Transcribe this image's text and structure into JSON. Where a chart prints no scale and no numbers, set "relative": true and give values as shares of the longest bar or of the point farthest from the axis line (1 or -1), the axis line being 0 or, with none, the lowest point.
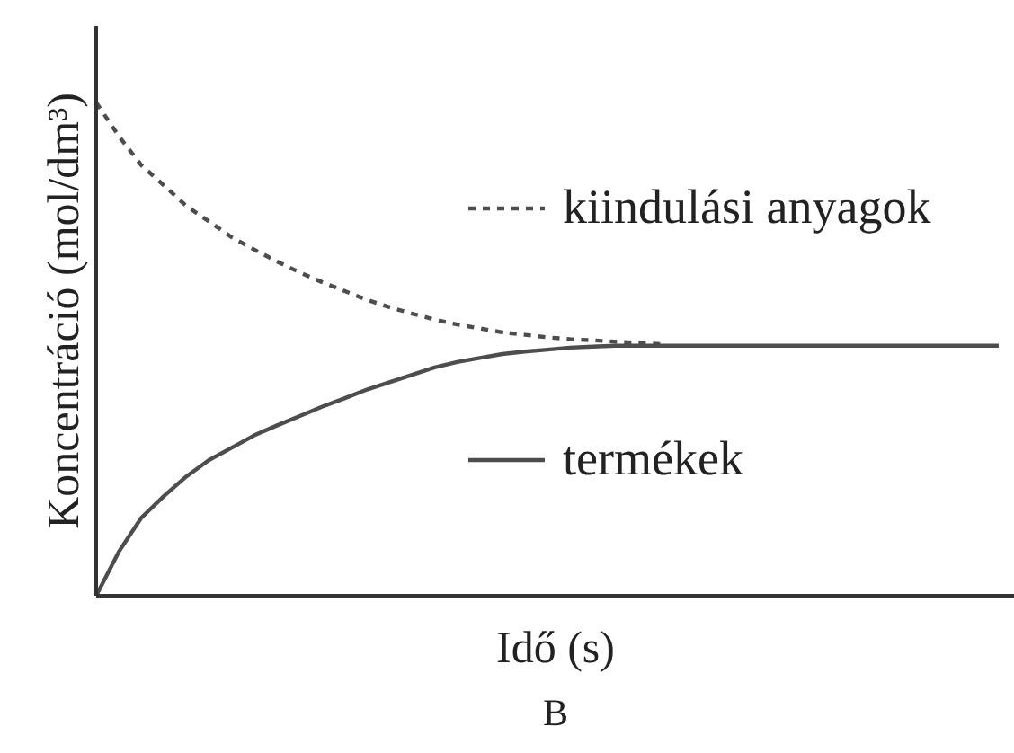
{
  "chart_data": {
    "type": "line",
    "relative": true,
    "xlabel": "Idő (s)",
    "ylabel": "Koncentráció (mol/dm³)",
    "annotations": [
      "B"
    ],
    "legend": "right",
    "categories": [
      null,
      null,
      null,
      null,
      null,
      null,
      null,
      null,
      null,
      null,
      null,
      null,
      null,
      null,
      null,
      null,
      null,
      null,
      null,
      null,
      null,
      null,
      null,
      null,
      null,
      null,
      null,
      null,
      null,
      null,
      null,
      null,
      null,
      null,
      null,
      null,
      null,
      null,
      null,
      null,
      null
    ],
    "series": [
      {
        "name": "kiindulási anyagok",
        "color": "#4d4d4d",
        "line_style": "dashed",
        "values": [
          1,
          0.932,
          0.873,
          0.832,
          0.79,
          0.759,
          0.727,
          0.702,
          0.678,
          0.656,
          0.636,
          0.618,
          0.6,
          0.585,
          0.572,
          0.56,
          0.55,
          0.542,
          0.534,
          0.529,
          0.524,
          0.52,
          0.518,
          0.515,
          0.513,
          0.51,
          null,
          null,
          null,
          null,
          null,
          null,
          null,
          null,
          null,
          null,
          null,
          null,
          null,
          null,
          null
        ]
      },
      {
        "name": "termékek",
        "color": "#4d4d4d",
        "line_style": "solid",
        "values": [
          0,
          0.089,
          0.158,
          0.202,
          0.242,
          0.275,
          0.3,
          0.325,
          0.345,
          0.364,
          0.383,
          0.4,
          0.418,
          0.433,
          0.448,
          0.463,
          0.474,
          0.482,
          0.49,
          0.495,
          0.499,
          0.503,
          0.505,
          0.507,
          0.507,
          0.507,
          0.507,
          0.507,
          0.507,
          0.507,
          0.507,
          0.507,
          0.507,
          0.507,
          0.507,
          0.507,
          0.507,
          0.507,
          0.507,
          0.507,
          0.507
        ]
      }
    ]
  }
}
